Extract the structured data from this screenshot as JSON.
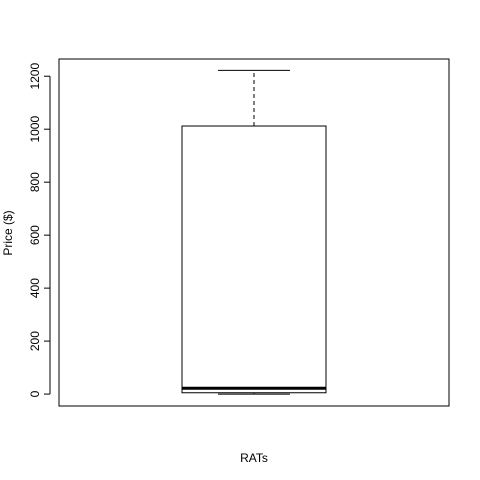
{
  "chart_data": {
    "type": "box",
    "xlabel": "RATs",
    "ylabel": "Price ($)",
    "ylim": [
      -45,
      1265
    ],
    "yticks": [
      0,
      200,
      400,
      600,
      800,
      1000,
      1200
    ],
    "ytick_labels": [
      "0",
      "200",
      "400",
      "600",
      "800",
      "1000",
      "1200"
    ],
    "box": {
      "min": 0,
      "q1": 5,
      "median": 22,
      "q3": 1012,
      "max": 1222
    }
  }
}
